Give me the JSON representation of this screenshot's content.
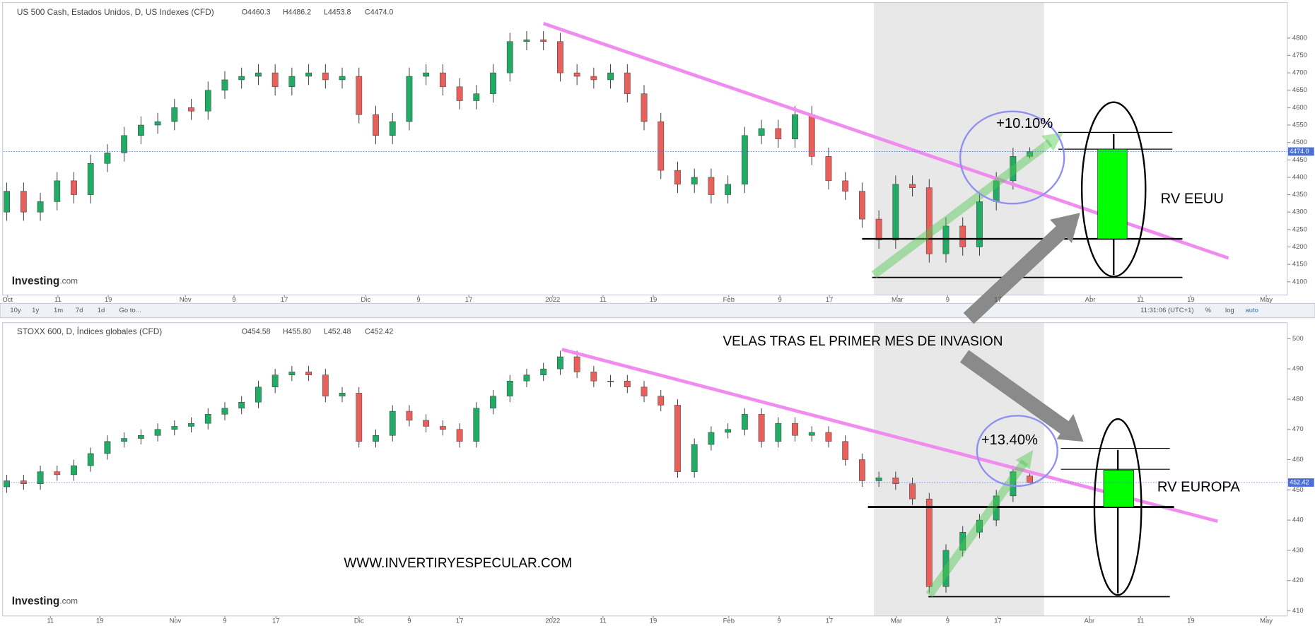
{
  "chart_data": [
    {
      "type": "candlestick",
      "title": "US 500 Cash, Estados Unidos, D, US Indexes (CFD)",
      "ohlc_header": [
        "O4460.3",
        "H4486.2",
        "L4453.8",
        "C4474.0"
      ],
      "up_color": "#22ab64",
      "down_color": "#e8605c",
      "last_label": "4474.0",
      "xlim": [
        0,
        152.7
      ],
      "ylim": [
        4062,
        4902
      ],
      "yticks": [
        4100,
        4150,
        4200,
        4250,
        4300,
        4350,
        4400,
        4450,
        4500,
        4550,
        4600,
        4650,
        4700,
        4750,
        4800
      ],
      "xticks": [
        {
          "value": 0.1,
          "label": "Oct"
        },
        {
          "value": 6.1,
          "label": "11"
        },
        {
          "value": 12.1,
          "label": "19"
        },
        {
          "value": 21.3,
          "label": "Nov"
        },
        {
          "value": 27.1,
          "label": "9"
        },
        {
          "value": 33.1,
          "label": "17"
        },
        {
          "value": 42.8,
          "label": "Dic"
        },
        {
          "value": 49.1,
          "label": "9"
        },
        {
          "value": 55.1,
          "label": "17"
        },
        {
          "value": 65.1,
          "label": "2022"
        },
        {
          "value": 71.1,
          "label": "11"
        },
        {
          "value": 77.1,
          "label": "19"
        },
        {
          "value": 86.1,
          "label": "Feb"
        },
        {
          "value": 92.2,
          "label": "9"
        },
        {
          "value": 98.1,
          "label": "17"
        },
        {
          "value": 106.2,
          "label": "Mar"
        },
        {
          "value": 112.2,
          "label": "9"
        },
        {
          "value": 118.2,
          "label": "17"
        },
        {
          "value": 129.2,
          "label": "Abr"
        },
        {
          "value": 135.2,
          "label": "11"
        },
        {
          "value": 141.2,
          "label": "19"
        },
        {
          "value": 150.2,
          "label": "May"
        }
      ],
      "x": [
        0,
        2,
        4,
        6,
        8,
        10,
        12,
        14,
        16,
        18,
        20,
        22,
        24,
        26,
        28,
        30,
        32,
        34,
        36,
        38,
        40,
        42,
        44,
        46,
        48,
        50,
        52,
        54,
        56,
        58,
        60,
        62,
        64,
        66,
        68,
        70,
        72,
        74,
        76,
        78,
        80,
        82,
        84,
        86,
        88,
        90,
        92,
        94,
        96,
        98,
        100,
        102,
        104,
        106,
        108,
        110,
        112,
        114,
        116,
        118,
        120,
        122
      ],
      "open": [
        4300,
        4360,
        4300,
        4330,
        4390,
        4350,
        4440,
        4470,
        4520,
        4550,
        4560,
        4600,
        4590,
        4650,
        4680,
        4690,
        4700,
        4660,
        4690,
        4700,
        4680,
        4690,
        4580,
        4520,
        4560,
        4690,
        4700,
        4660,
        4620,
        4640,
        4700,
        4790,
        4795,
        4790,
        4700,
        4690,
        4680,
        4700,
        4640,
        4560,
        4420,
        4380,
        4400,
        4350,
        4380,
        4520,
        4540,
        4510,
        4580,
        4460,
        4390,
        4360,
        4280,
        4220,
        4380,
        4370,
        4180,
        4260,
        4200,
        4330,
        4390,
        4460.3
      ],
      "high": [
        4385,
        4385,
        4355,
        4415,
        4415,
        4465,
        4495,
        4545,
        4575,
        4585,
        4625,
        4625,
        4675,
        4705,
        4715,
        4725,
        4725,
        4715,
        4725,
        4725,
        4715,
        4715,
        4605,
        4585,
        4715,
        4725,
        4725,
        4685,
        4665,
        4725,
        4815,
        4820,
        4820,
        4815,
        4725,
        4715,
        4725,
        4725,
        4665,
        4585,
        4445,
        4425,
        4425,
        4405,
        4545,
        4565,
        4565,
        4605,
        4605,
        4485,
        4415,
        4385,
        4305,
        4405,
        4405,
        4395,
        4285,
        4285,
        4355,
        4415,
        4485,
        4486.2
      ],
      "low": [
        4275,
        4275,
        4275,
        4305,
        4325,
        4325,
        4415,
        4445,
        4495,
        4525,
        4535,
        4565,
        4565,
        4625,
        4655,
        4665,
        4635,
        4635,
        4665,
        4655,
        4655,
        4555,
        4495,
        4495,
        4535,
        4665,
        4635,
        4595,
        4595,
        4615,
        4675,
        4765,
        4765,
        4675,
        4665,
        4655,
        4655,
        4615,
        4535,
        4395,
        4355,
        4355,
        4325,
        4325,
        4355,
        4495,
        4485,
        4485,
        4435,
        4365,
        4335,
        4255,
        4195,
        4195,
        4345,
        4155,
        4155,
        4175,
        4175,
        4305,
        4365,
        4453.8
      ],
      "close": [
        4360,
        4300,
        4330,
        4390,
        4350,
        4440,
        4470,
        4520,
        4550,
        4560,
        4600,
        4590,
        4650,
        4680,
        4690,
        4700,
        4660,
        4690,
        4700,
        4680,
        4690,
        4580,
        4520,
        4560,
        4690,
        4700,
        4660,
        4620,
        4640,
        4700,
        4790,
        4795,
        4790,
        4700,
        4690,
        4680,
        4700,
        4640,
        4560,
        4420,
        4380,
        4400,
        4350,
        4380,
        4520,
        4540,
        4510,
        4580,
        4460,
        4390,
        4360,
        4280,
        4220,
        4380,
        4370,
        4180,
        4260,
        4200,
        4330,
        4390,
        4460,
        4474
      ]
    },
    {
      "type": "candlestick",
      "title": "STOXX 600, D, Índices globales (CFD)",
      "ohlc_header": [
        "O454.58",
        "H455.80",
        "L452.48",
        "C452.42"
      ],
      "up_color": "#22ab64",
      "down_color": "#e8605c",
      "last_label": "452.42",
      "xlim": [
        0,
        152.7
      ],
      "ylim": [
        408.3,
        505.3
      ],
      "yticks": [
        410,
        420,
        430,
        440,
        450,
        460,
        470,
        480,
        490,
        500
      ],
      "xticks": [
        {
          "value": 5.2,
          "label": "11"
        },
        {
          "value": 11.1,
          "label": "19"
        },
        {
          "value": 20.1,
          "label": "Nov"
        },
        {
          "value": 26,
          "label": "9"
        },
        {
          "value": 32.1,
          "label": "17"
        },
        {
          "value": 42,
          "label": "Dic"
        },
        {
          "value": 48,
          "label": "9"
        },
        {
          "value": 54,
          "label": "17"
        },
        {
          "value": 65.1,
          "label": "2022"
        },
        {
          "value": 71.1,
          "label": "11"
        },
        {
          "value": 77.1,
          "label": "19"
        },
        {
          "value": 86.1,
          "label": "Feb"
        },
        {
          "value": 92.1,
          "label": "9"
        },
        {
          "value": 98.1,
          "label": "17"
        },
        {
          "value": 106.1,
          "label": "Mar"
        },
        {
          "value": 112.2,
          "label": "9"
        },
        {
          "value": 118.2,
          "label": "17"
        },
        {
          "value": 129.1,
          "label": "Abr"
        },
        {
          "value": 135.2,
          "label": "11"
        },
        {
          "value": 141.2,
          "label": "19"
        },
        {
          "value": 150.2,
          "label": "May"
        }
      ],
      "x": [
        0,
        2,
        4,
        6,
        8,
        10,
        12,
        14,
        16,
        18,
        20,
        22,
        24,
        26,
        28,
        30,
        32,
        34,
        36,
        38,
        40,
        42,
        44,
        46,
        48,
        50,
        52,
        54,
        56,
        58,
        60,
        62,
        64,
        66,
        68,
        70,
        72,
        74,
        76,
        78,
        80,
        82,
        84,
        86,
        88,
        90,
        92,
        94,
        96,
        98,
        100,
        102,
        104,
        106,
        108,
        110,
        112,
        114,
        116,
        118,
        120,
        122
      ],
      "open": [
        451,
        453,
        452,
        456,
        455,
        458,
        462,
        466,
        467,
        468,
        470,
        471,
        472,
        475,
        477,
        479,
        484,
        488,
        489,
        488,
        481,
        482,
        466,
        468,
        476,
        473,
        471,
        470,
        466,
        477,
        481,
        486,
        488,
        490,
        494,
        489,
        486,
        486,
        484,
        481,
        478,
        456,
        465,
        469,
        470,
        475,
        466,
        472,
        468,
        469,
        466,
        460,
        453,
        454,
        452,
        447,
        418,
        430,
        436,
        440,
        448,
        454.58
      ],
      "high": [
        455,
        455,
        458,
        458,
        460,
        464,
        468,
        469,
        470,
        472,
        473,
        474,
        477,
        479,
        481,
        486,
        490,
        491,
        491,
        490,
        484,
        484,
        470,
        478,
        478,
        475,
        473,
        472,
        479,
        483,
        488,
        490,
        492,
        496,
        496,
        491,
        488,
        488,
        486,
        483,
        480,
        467,
        471,
        472,
        477,
        477,
        474,
        474,
        471,
        471,
        468,
        462,
        456,
        456,
        454,
        449,
        432,
        438,
        442,
        450,
        458,
        455.8
      ],
      "low": [
        449,
        450,
        450,
        453,
        453,
        456,
        460,
        464,
        465,
        466,
        468,
        469,
        470,
        473,
        475,
        477,
        482,
        486,
        486,
        479,
        479,
        464,
        464,
        466,
        471,
        469,
        468,
        464,
        464,
        475,
        479,
        484,
        486,
        488,
        487,
        484,
        484,
        482,
        479,
        476,
        454,
        454,
        463,
        467,
        468,
        464,
        464,
        466,
        466,
        464,
        458,
        451,
        451,
        450,
        445,
        416,
        416,
        428,
        434,
        438,
        446,
        452.48
      ],
      "close": [
        453,
        452,
        456,
        455,
        458,
        462,
        466,
        467,
        468,
        470,
        471,
        472,
        475,
        477,
        479,
        484,
        488,
        489,
        488,
        481,
        482,
        466,
        468,
        476,
        473,
        471,
        470,
        466,
        477,
        481,
        486,
        488,
        490,
        494,
        489,
        486,
        486,
        484,
        481,
        478,
        456,
        465,
        469,
        470,
        475,
        466,
        472,
        468,
        469,
        466,
        460,
        453,
        454,
        452,
        447,
        418,
        430,
        436,
        440,
        448,
        456,
        452.42
      ]
    }
  ],
  "brand": [
    "Investing",
    ".com"
  ],
  "toolbar": {
    "ranges": [
      "10y",
      "1y",
      "1m",
      "7d",
      "1d",
      "Go to..."
    ],
    "clock": "11:31:06 (UTC+1)",
    "options": [
      "%",
      "log",
      "auto"
    ]
  },
  "annotations": {
    "us_gain": "+10.10%",
    "us_label": "RV EEUU",
    "headline": "VELAS TRAS EL PRIMER MES DE INVASION",
    "eu_gain": "+13.40%",
    "eu_label": "RV EUROPA",
    "website": "WWW.INVERTIRYESPECULAR.COM"
  }
}
